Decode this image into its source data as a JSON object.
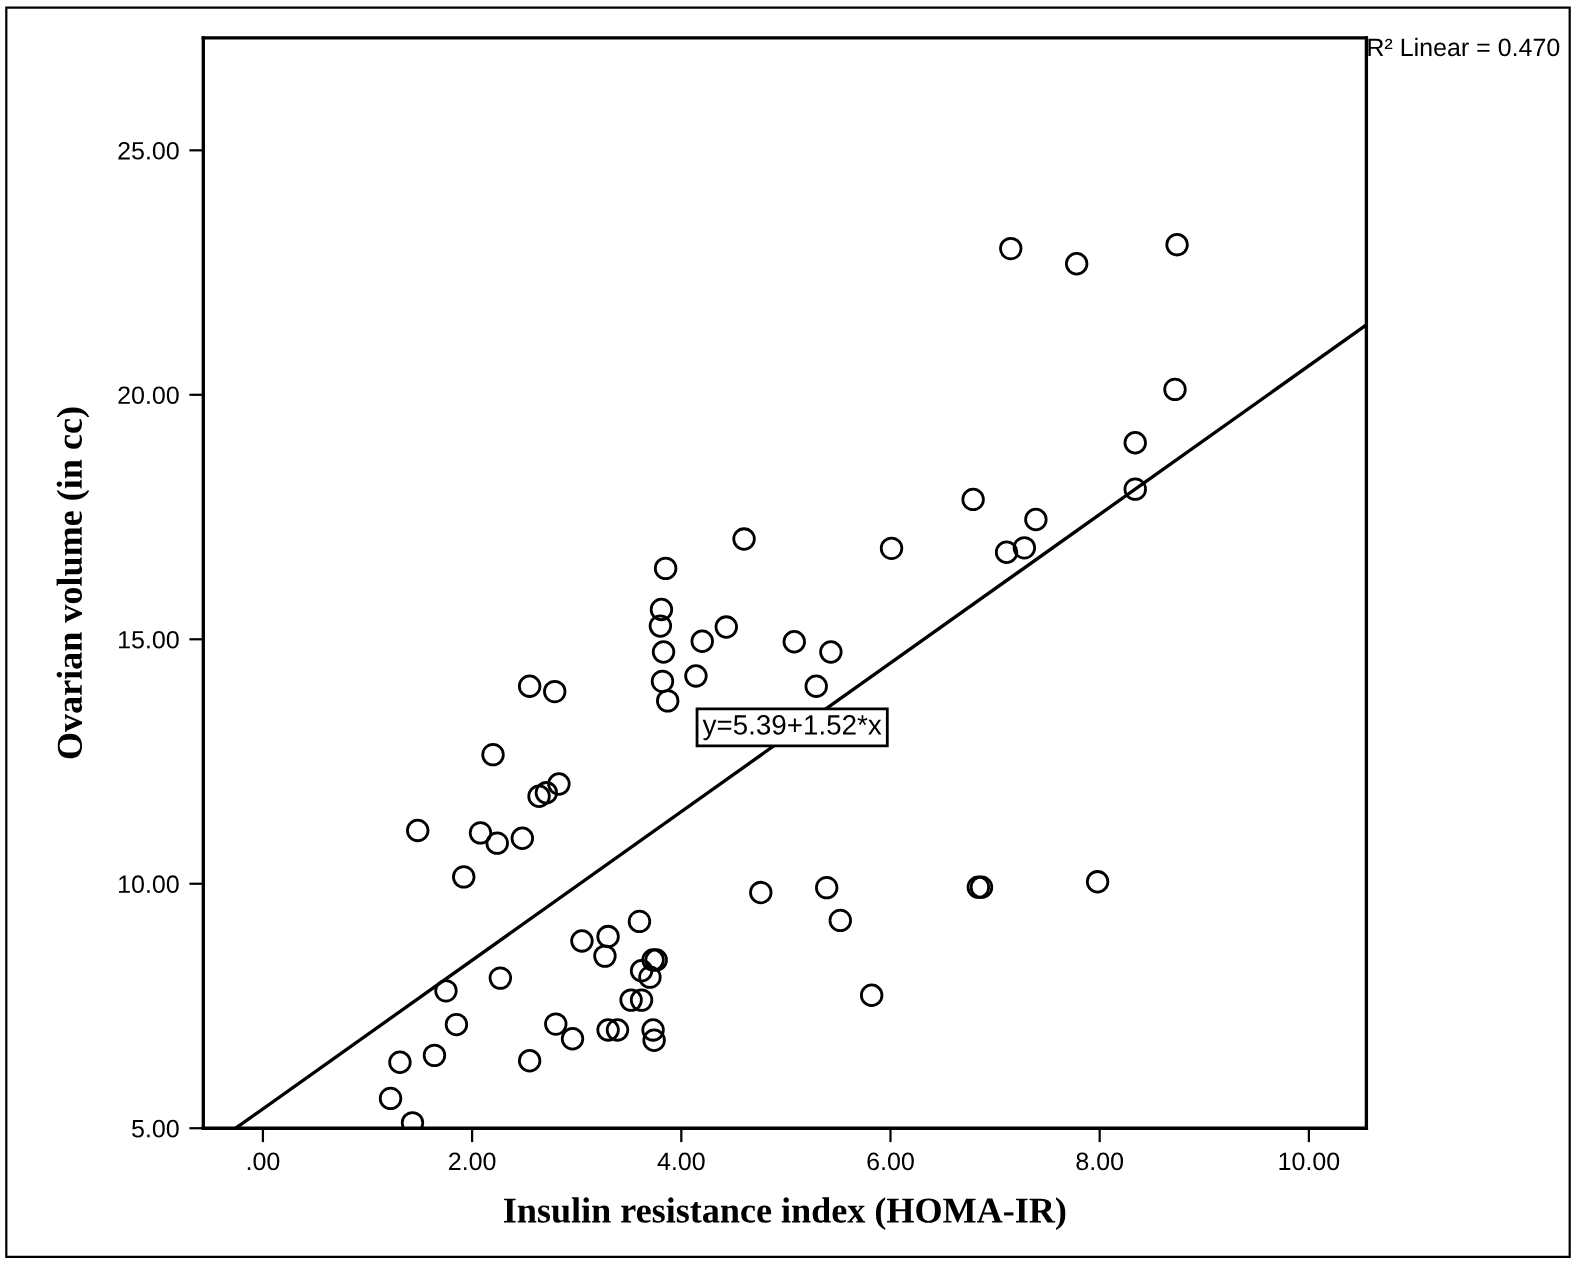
{
  "chart_data": {
    "type": "scatter",
    "xlabel": "Insulin resistance index (HOMA-IR)",
    "ylabel": "Ovarian volume (in cc)",
    "annotations": [
      "R² Linear = 0.470",
      {
        "text": "y=5.39+1.52*x",
        "x": 5.06,
        "y": 13.2
      }
    ],
    "xlim": [
      -0.57,
      10.55
    ],
    "ylim": [
      5,
      27.3
    ],
    "xticks": [
      {
        "value": 0,
        "label": ".00"
      },
      {
        "value": 2,
        "label": "2.00"
      },
      {
        "value": 4,
        "label": "4.00"
      },
      {
        "value": 6,
        "label": "6.00"
      },
      {
        "value": 8,
        "label": "8.00"
      },
      {
        "value": 10,
        "label": "10.00"
      }
    ],
    "yticks": [
      {
        "value": 5,
        "label": "5.00"
      },
      {
        "value": 10,
        "label": "10.00"
      },
      {
        "value": 15,
        "label": "15.00"
      },
      {
        "value": 20,
        "label": "20.00"
      },
      {
        "value": 25,
        "label": "25.00"
      }
    ],
    "grid": false,
    "legend": false,
    "series": [
      {
        "color": "#000000",
        "marker": "circle",
        "x": [
          4.6,
          6.01,
          3.85,
          3.81,
          3.8,
          4.2,
          4.43,
          5.08,
          5.43,
          3.83,
          2.55,
          2.79,
          4.14,
          3.82,
          3.87,
          5.29,
          2.2,
          2.83,
          2.64,
          2.71,
          1.48,
          2.08,
          2.24,
          2.48,
          1.92,
          4.76,
          5.39,
          5.52,
          3.6,
          3.05,
          3.3,
          3.27,
          3.73,
          3.76,
          3.62,
          3.7,
          2.27,
          1.75,
          5.82,
          3.52,
          3.62,
          1.85,
          2.8,
          2.96,
          3.3,
          3.39,
          3.73,
          3.74,
          1.64,
          1.31,
          2.55,
          1.22,
          1.43,
          7.15,
          7.78,
          8.74,
          8.72,
          8.34,
          8.34,
          6.79,
          7.39,
          7.11,
          7.28,
          6.84,
          6.87,
          7.98
        ],
        "values": [
          17.05,
          16.86,
          16.45,
          15.61,
          15.27,
          14.96,
          15.25,
          14.95,
          14.74,
          14.74,
          14.04,
          13.93,
          14.25,
          14.14,
          13.74,
          14.04,
          12.64,
          12.04,
          11.79,
          11.86,
          11.09,
          11.04,
          10.83,
          10.93,
          10.14,
          9.82,
          9.92,
          9.25,
          9.23,
          8.83,
          8.92,
          8.52,
          8.44,
          8.44,
          8.22,
          8.09,
          8.07,
          7.81,
          7.72,
          7.62,
          7.62,
          7.12,
          7.13,
          6.83,
          7.01,
          7.01,
          7.01,
          6.8,
          6.49,
          6.35,
          6.38,
          5.61,
          5.11,
          22.99,
          22.68,
          23.07,
          20.11,
          19.02,
          18.07,
          17.86,
          17.45,
          16.78,
          16.87,
          9.93,
          9.93,
          10.04
        ]
      },
      {
        "type": "line",
        "color": "#000000",
        "line_style": "solid",
        "x": [
          -0.26,
          10.55
        ],
        "values": [
          5.0,
          21.43
        ]
      }
    ]
  }
}
